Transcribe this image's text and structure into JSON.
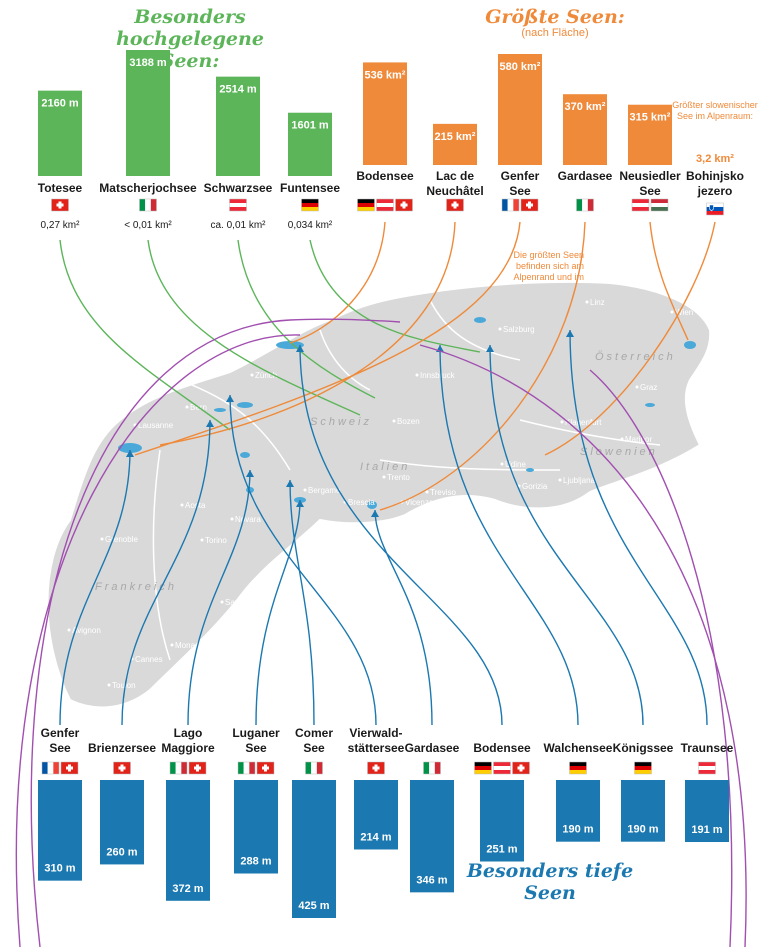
{
  "titles": {
    "high": "Besonders hochgelegene Seen:",
    "big": "Größte Seen:",
    "big_sub": "(nach Fläche)",
    "deep": "Besonders tiefe Seen"
  },
  "notes": {
    "alpine": "Die größten Seen befinden sich am Alpenrand und im Alpenvorland.",
    "slovenia": "Größter slowenischer See im Alpenraum:",
    "slovenia_value": "3,2 km²"
  },
  "colors": {
    "high": "#5db55a",
    "big": "#ef8a3a",
    "deep": "#1b78b0",
    "map": "#d9d9d9",
    "curve": "#a14fb0"
  },
  "chart_data": [
    {
      "type": "bar",
      "title": "Besonders hochgelegene Seen:",
      "unit": "m",
      "categories": [
        "Totesee",
        "Matscherjochsee",
        "Schwarzsee",
        "Funtensee"
      ],
      "values": [
        2160,
        3188,
        2514,
        1601
      ],
      "labels": [
        "2160 m",
        "3188 m",
        "2514 m",
        "1601 m"
      ],
      "areas": [
        "0,27 km²",
        "< 0,01 km²",
        "ca. 0,01 km²",
        "0,034 km²"
      ],
      "flags": [
        [
          "ch"
        ],
        [
          "it"
        ],
        [
          "at"
        ],
        [
          "de"
        ]
      ],
      "ylim": [
        0,
        3188
      ]
    },
    {
      "type": "bar",
      "title": "Größte Seen:",
      "subtitle": "(nach Fläche)",
      "unit": "km²",
      "categories": [
        "Bodensee",
        "Lac de Neuchâtel",
        "Genfer See",
        "Gardasee",
        "Neusiedler See"
      ],
      "values": [
        536,
        215,
        580,
        370,
        315
      ],
      "labels": [
        "536 km²",
        "215 km²",
        "580 km²",
        "370 km²",
        "315 km²"
      ],
      "flags": [
        [
          "de",
          "at",
          "ch"
        ],
        [
          "ch"
        ],
        [
          "fr",
          "ch"
        ],
        [
          "it"
        ],
        [
          "at",
          "hu"
        ]
      ],
      "ylim": [
        0,
        580
      ]
    },
    {
      "type": "bar",
      "title": "Besonders tiefe Seen",
      "unit": "m",
      "categories": [
        "Genfer See",
        "Brienzersee",
        "Lago Maggiore",
        "Luganer See",
        "Comer See",
        "Vierwaldstättersee",
        "Gardasee",
        "Bodensee",
        "Walchensee",
        "Königssee",
        "Traunsee"
      ],
      "values": [
        310,
        260,
        372,
        288,
        425,
        214,
        346,
        251,
        190,
        190,
        191
      ],
      "labels": [
        "310 m",
        "260 m",
        "372 m",
        "288 m",
        "425 m",
        "214 m",
        "346 m",
        "251 m",
        "190 m",
        "190 m",
        "191 m"
      ],
      "flags": [
        [
          "fr",
          "ch"
        ],
        [
          "ch"
        ],
        [
          "it",
          "ch"
        ],
        [
          "it",
          "ch"
        ],
        [
          "it"
        ],
        [
          "ch"
        ],
        [
          "it"
        ],
        [
          "de",
          "at",
          "ch"
        ],
        [
          "de"
        ],
        [
          "de"
        ],
        [
          "at"
        ]
      ],
      "ylim": [
        0,
        425
      ]
    },
    {
      "type": "other",
      "title": "Bohinjsko jezero",
      "categories": [
        "Bohinjsko jezero"
      ],
      "flags": [
        [
          "si"
        ]
      ]
    }
  ],
  "map_labels": [
    "Zürich",
    "Bern",
    "Lausanne",
    "Aosta",
    "Novara",
    "Torino",
    "Grenoble",
    "Savona",
    "Monaco",
    "Cannes",
    "Toulon",
    "Avignon",
    "Bergamo",
    "Brescia",
    "Verona",
    "Vicenza",
    "Treviso",
    "Trento",
    "Bozen",
    "Innsbruck",
    "Salzburg",
    "Udine",
    "Gorizia",
    "Ljubljana",
    "Maribor",
    "Klagenfurt",
    "Graz",
    "Wien",
    "Linz",
    "Schweiz",
    "Italien",
    "Österreich",
    "Slowenien",
    "Frankreich"
  ]
}
